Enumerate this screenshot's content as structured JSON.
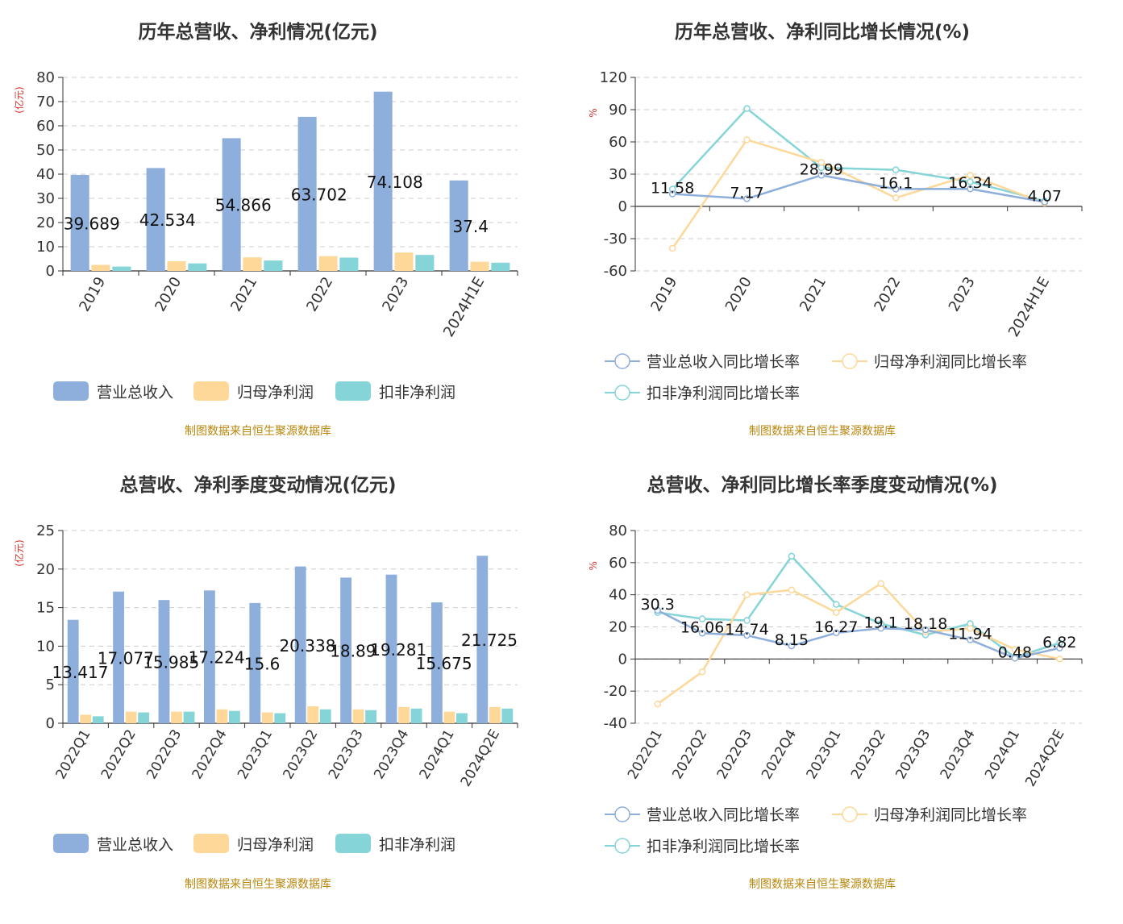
{
  "colors": {
    "revenue": "#8eaedb",
    "parent_profit": "#fdd899",
    "nonrecurring_profit": "#84d4d8",
    "source": "#b8860b",
    "unit": "#d0342c",
    "axis": "#333333",
    "grid": "#cccccc"
  },
  "source_text": "制图数据来自恒生聚源数据库",
  "chart_data": [
    {
      "id": "annual-amounts",
      "type": "bar",
      "title": "历年总营收、净利情况(亿元)",
      "ylabel": "(亿元)",
      "ylim": [
        0,
        80
      ],
      "yticks": [
        0,
        10,
        20,
        30,
        40,
        50,
        60,
        70,
        80
      ],
      "categories": [
        "2019",
        "2020",
        "2021",
        "2022",
        "2023",
        "2024H1E"
      ],
      "series": [
        {
          "name": "营业总收入",
          "color_key": "revenue",
          "values": [
            39.689,
            42.534,
            54.866,
            63.702,
            74.108,
            37.4
          ],
          "labels": [
            "39.689",
            "42.534",
            "54.866",
            "63.702",
            "74.108",
            "37.4"
          ]
        },
        {
          "name": "归母净利润",
          "color_key": "parent_profit",
          "values": [
            2.5,
            4.0,
            5.6,
            6.1,
            7.6,
            3.8
          ]
        },
        {
          "name": "扣非净利润",
          "color_key": "nonrecurring_profit",
          "values": [
            1.8,
            3.1,
            4.3,
            5.5,
            6.6,
            3.4
          ]
        }
      ],
      "legend": [
        "营业总收入",
        "归母净利润",
        "扣非净利润"
      ],
      "source": "制图数据来自恒生聚源数据库"
    },
    {
      "id": "annual-growth",
      "type": "line",
      "title": "历年总营收、净利同比增长情况(%)",
      "ylabel": "%",
      "ylim": [
        -60,
        120
      ],
      "yticks": [
        -60,
        -30,
        0,
        30,
        60,
        90,
        120
      ],
      "categories": [
        "2019",
        "2020",
        "2021",
        "2022",
        "2023",
        "2024H1E"
      ],
      "series": [
        {
          "name": "营业总收入同比增长率",
          "color_key": "revenue",
          "values": [
            11.58,
            7.17,
            28.99,
            16.1,
            16.34,
            4.07
          ],
          "labels": [
            "11.58",
            "7.17",
            "28.99",
            "16.1",
            "16.34",
            "4.07"
          ]
        },
        {
          "name": "归母净利润同比增长率",
          "color_key": "parent_profit",
          "values": [
            -39,
            62,
            41,
            8,
            29,
            3
          ]
        },
        {
          "name": "扣非净利润同比增长率",
          "color_key": "nonrecurring_profit",
          "values": [
            16,
            91,
            36,
            34,
            23,
            5
          ]
        }
      ],
      "legend": [
        "营业总收入同比增长率",
        "归母净利润同比增长率",
        "扣非净利润同比增长率"
      ],
      "source": "制图数据来自恒生聚源数据库"
    },
    {
      "id": "quarterly-amounts",
      "type": "bar",
      "title": "总营收、净利季度变动情况(亿元)",
      "ylabel": "(亿元)",
      "ylim": [
        0,
        25
      ],
      "yticks": [
        0,
        5,
        10,
        15,
        20,
        25
      ],
      "categories": [
        "2022Q1",
        "2022Q2",
        "2022Q3",
        "2022Q4",
        "2023Q1",
        "2023Q2",
        "2023Q3",
        "2023Q4",
        "2024Q1",
        "2024Q2E"
      ],
      "series": [
        {
          "name": "营业总收入",
          "color_key": "revenue",
          "values": [
            13.417,
            17.077,
            15.985,
            17.224,
            15.6,
            20.338,
            18.89,
            19.281,
            15.675,
            21.725
          ],
          "labels": [
            "13.417",
            "17.077",
            "15.985",
            "17.224",
            "15.6",
            "20.338",
            "18.89",
            "19.281",
            "15.675",
            "21.725"
          ]
        },
        {
          "name": "归母净利润",
          "color_key": "parent_profit",
          "values": [
            1.1,
            1.5,
            1.5,
            1.8,
            1.4,
            2.2,
            1.8,
            2.1,
            1.5,
            2.1
          ]
        },
        {
          "name": "扣非净利润",
          "color_key": "nonrecurring_profit",
          "values": [
            0.9,
            1.4,
            1.5,
            1.6,
            1.3,
            1.8,
            1.7,
            1.9,
            1.3,
            1.9
          ]
        }
      ],
      "legend": [
        "营业总收入",
        "归母净利润",
        "扣非净利润"
      ],
      "source": "制图数据来自恒生聚源数据库"
    },
    {
      "id": "quarterly-growth",
      "type": "line",
      "title": "总营收、净利同比增长率季度变动情况(%)",
      "ylabel": "%",
      "ylim": [
        -40,
        80
      ],
      "yticks": [
        -40,
        -20,
        0,
        20,
        40,
        60,
        80
      ],
      "categories": [
        "2022Q1",
        "2022Q2",
        "2022Q3",
        "2022Q4",
        "2023Q1",
        "2023Q2",
        "2023Q3",
        "2023Q4",
        "2024Q1",
        "2024Q2E"
      ],
      "series": [
        {
          "name": "营业总收入同比增长率",
          "color_key": "revenue",
          "values": [
            30.3,
            16.06,
            14.74,
            8.15,
            16.27,
            19.1,
            18.18,
            11.94,
            0.48,
            6.82
          ],
          "labels": [
            "30.3",
            "16.06",
            "14.74",
            "8.15",
            "16.27",
            "19.1",
            "18.18",
            "11.94",
            "0.48",
            "6.82"
          ]
        },
        {
          "name": "归母净利润同比增长率",
          "color_key": "parent_profit",
          "values": [
            -28,
            -8,
            40,
            43,
            29,
            47,
            17,
            19,
            6,
            0
          ]
        },
        {
          "name": "扣非净利润同比增长率",
          "color_key": "nonrecurring_profit",
          "values": [
            29,
            25,
            24,
            64,
            34,
            22,
            15,
            22,
            1,
            10
          ]
        }
      ],
      "legend": [
        "营业总收入同比增长率",
        "归母净利润同比增长率",
        "扣非净利润同比增长率"
      ],
      "source": "制图数据来自恒生聚源数据库"
    }
  ]
}
